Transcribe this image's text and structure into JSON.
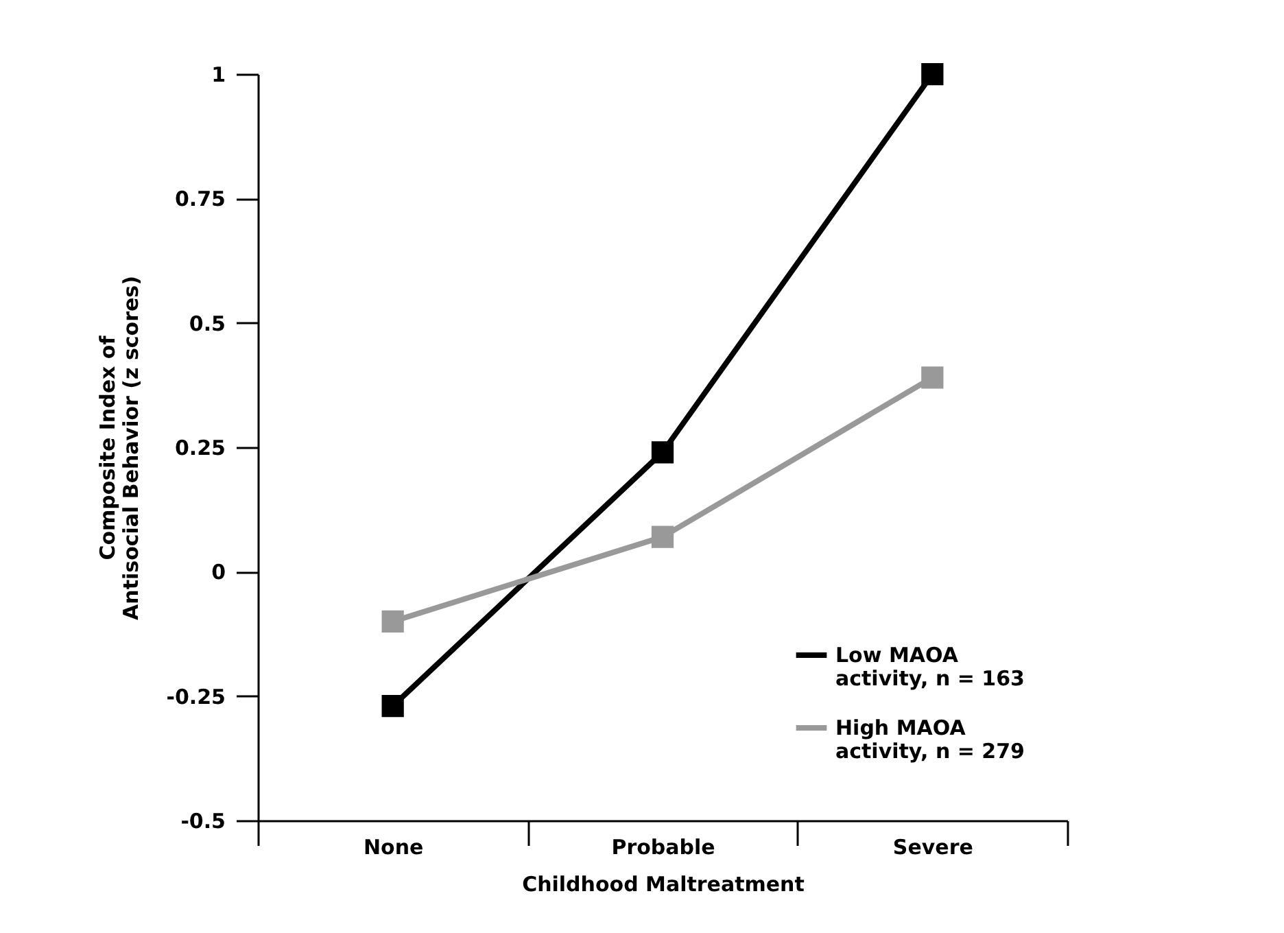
{
  "chart_data": {
    "type": "line",
    "xlabel": "Childhood Maltreatment",
    "ylabel": "Composite Index of Antisocial Behavior (z scores)",
    "categories": [
      "None",
      "Probable",
      "Severe"
    ],
    "series": [
      {
        "name": "Low MAOA activity, n = 163",
        "color": "#000000",
        "values": [
          -0.27,
          0.24,
          1.0
        ]
      },
      {
        "name": "High MAOA activity, n = 279",
        "color": "#999999",
        "values": [
          -0.1,
          0.07,
          0.39
        ]
      }
    ],
    "ylim": [
      -0.5,
      1
    ],
    "yticks": [
      -0.5,
      -0.25,
      0,
      0.25,
      0.5,
      0.75,
      1
    ],
    "grid": false,
    "legend": "bottom right",
    "marker": "square",
    "line_style": "solid"
  }
}
